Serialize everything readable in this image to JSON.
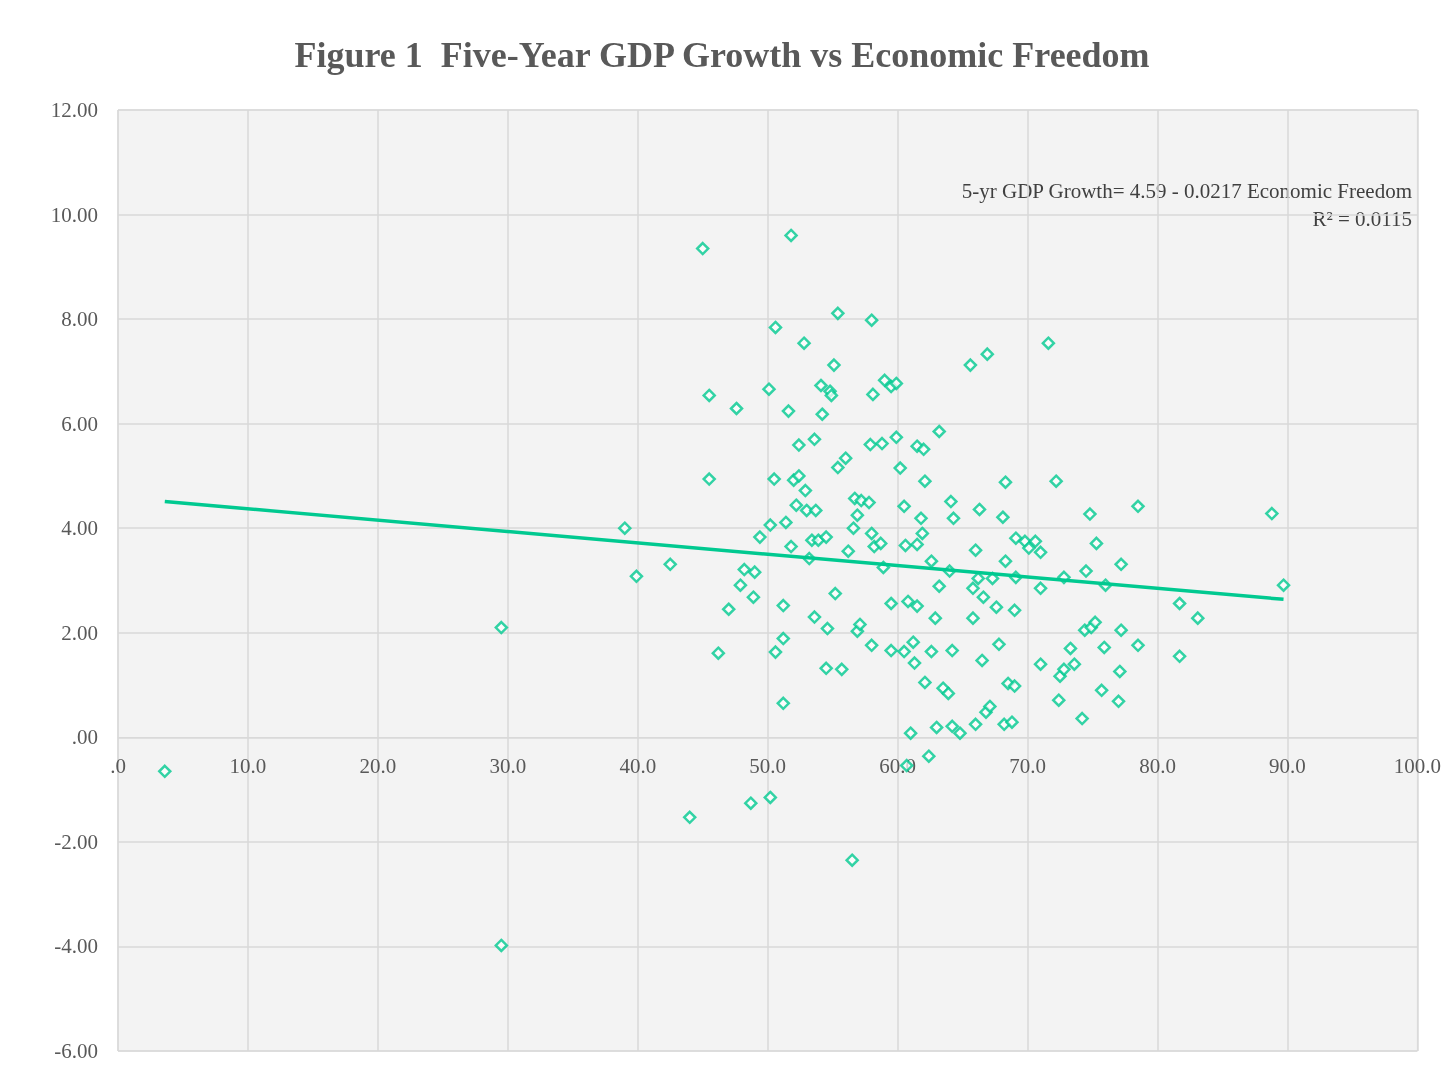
{
  "chart_data": {
    "type": "scatter",
    "title": "Figure 1  Five-Year GDP Growth vs Economic Freedom",
    "annotations": [
      "5-yr GDP Growth= 4.59 - 0.0217 Economic Freedom",
      "R² = 0.0115"
    ],
    "xlim": [
      0,
      100
    ],
    "xticks": [
      {
        "value": 0,
        "label": ".0"
      },
      {
        "value": 10,
        "label": "10.0"
      },
      {
        "value": 20,
        "label": "20.0"
      },
      {
        "value": 30,
        "label": "30.0"
      },
      {
        "value": 40,
        "label": "40.0"
      },
      {
        "value": 50,
        "label": "50.0"
      },
      {
        "value": 60,
        "label": "60.0"
      },
      {
        "value": 70,
        "label": "70.0"
      },
      {
        "value": 80,
        "label": "80.0"
      },
      {
        "value": 90,
        "label": "90.0"
      },
      {
        "value": 100,
        "label": "100.0"
      }
    ],
    "ylim": [
      -6,
      12
    ],
    "yticks": [
      {
        "value": -6,
        "label": "-6.00"
      },
      {
        "value": -4,
        "label": "-4.00"
      },
      {
        "value": -2,
        "label": "-2.00"
      },
      {
        "value": 0,
        "label": ".00"
      },
      {
        "value": 2,
        "label": "2.00"
      },
      {
        "value": 4,
        "label": "4.00"
      },
      {
        "value": 6,
        "label": "6.00"
      },
      {
        "value": 8,
        "label": "8.00"
      },
      {
        "value": 10,
        "label": "10.00"
      },
      {
        "value": 12,
        "label": "12.00"
      }
    ],
    "grid": true,
    "series": [
      {
        "color": "#00c990",
        "marker": "diamond",
        "x": [
          3.6,
          29.5,
          29.5,
          39.0,
          39.9,
          42.5,
          44.0,
          45.0,
          45.5,
          45.5,
          46.2,
          47.0,
          47.6,
          47.9,
          48.2,
          49.0,
          48.9,
          48.7,
          49.4,
          50.1,
          50.2,
          50.5,
          50.6,
          50.2,
          50.6,
          51.2,
          51.2,
          51.2,
          51.4,
          51.6,
          51.8,
          51.8,
          52.0,
          52.2,
          52.4,
          52.4,
          52.9,
          52.8,
          53.0,
          53.2,
          53.4,
          53.6,
          53.7,
          53.6,
          53.9,
          54.1,
          54.2,
          54.5,
          54.5,
          54.6,
          54.8,
          54.9,
          55.1,
          55.2,
          55.4,
          55.4,
          55.7,
          56.0,
          56.2,
          56.5,
          56.6,
          56.7,
          56.9,
          57.1,
          56.9,
          57.2,
          57.8,
          58.0,
          58.1,
          57.9,
          58.0,
          58.2,
          58.0,
          58.7,
          58.8,
          58.9,
          59.0,
          59.5,
          59.5,
          59.5,
          59.9,
          59.9,
          60.2,
          60.5,
          60.5,
          60.6,
          60.7,
          60.8,
          61.0,
          61.2,
          61.3,
          61.5,
          61.5,
          61.5,
          61.8,
          61.9,
          62.0,
          62.1,
          62.1,
          62.4,
          62.6,
          62.6,
          62.9,
          63.0,
          63.2,
          63.2,
          63.5,
          63.9,
          64.0,
          64.1,
          64.2,
          64.2,
          64.3,
          64.8,
          65.6,
          65.8,
          65.8,
          66.0,
          66.0,
          66.2,
          66.3,
          66.5,
          66.6,
          66.9,
          66.8,
          67.1,
          67.3,
          67.6,
          67.8,
          68.1,
          68.2,
          68.3,
          68.3,
          68.5,
          68.8,
          69.0,
          69.1,
          69.1,
          69.0,
          69.8,
          70.1,
          70.6,
          71.0,
          71.0,
          71.0,
          71.6,
          72.2,
          72.4,
          72.5,
          72.8,
          72.8,
          73.3,
          73.6,
          74.2,
          74.4,
          74.5,
          74.8,
          74.9,
          75.2,
          75.3,
          75.7,
          75.9,
          76.0,
          77.0,
          77.1,
          77.2,
          77.2,
          78.5,
          78.5,
          81.7,
          81.7,
          83.1,
          88.8,
          89.7
        ],
        "values": [
          -0.65,
          2.1,
          -3.98,
          4.0,
          3.08,
          3.31,
          -1.53,
          9.35,
          6.54,
          4.94,
          1.61,
          2.45,
          6.29,
          2.91,
          3.21,
          3.16,
          2.68,
          -1.26,
          3.83,
          6.66,
          -1.15,
          4.94,
          7.84,
          4.06,
          1.63,
          1.89,
          2.52,
          0.65,
          4.11,
          6.24,
          9.6,
          3.65,
          4.92,
          4.44,
          5.59,
          5.0,
          4.72,
          7.54,
          4.34,
          3.42,
          3.77,
          5.7,
          4.34,
          2.3,
          3.77,
          6.73,
          6.18,
          3.83,
          1.32,
          2.08,
          6.62,
          6.54,
          7.12,
          2.75,
          8.11,
          5.16,
          1.3,
          5.34,
          3.56,
          -2.35,
          4.0,
          4.57,
          2.03,
          2.16,
          4.25,
          4.53,
          4.49,
          7.98,
          6.56,
          5.6,
          3.9,
          3.65,
          1.76,
          3.71,
          5.62,
          3.25,
          6.83,
          6.71,
          2.56,
          1.66,
          6.77,
          5.74,
          5.15,
          1.64,
          4.42,
          3.67,
          -0.54,
          2.6,
          0.08,
          1.82,
          1.42,
          5.57,
          2.51,
          3.69,
          4.19,
          3.9,
          5.51,
          1.05,
          4.9,
          -0.36,
          1.64,
          3.37,
          2.28,
          0.19,
          5.85,
          2.89,
          0.94,
          0.84,
          3.18,
          4.51,
          1.66,
          0.21,
          4.19,
          0.08,
          7.12,
          2.28,
          2.85,
          3.58,
          0.25,
          3.04,
          4.36,
          1.47,
          2.68,
          7.33,
          0.48,
          0.59,
          3.04,
          2.49,
          1.78,
          4.21,
          0.25,
          4.88,
          3.37,
          1.03,
          0.29,
          2.43,
          3.81,
          3.06,
          0.98,
          3.75,
          3.62,
          3.75,
          3.54,
          1.4,
          2.85,
          7.54,
          4.9,
          0.71,
          1.17,
          1.3,
          3.06,
          1.7,
          1.4,
          0.36,
          2.05,
          3.18,
          4.27,
          2.1,
          2.2,
          3.71,
          0.9,
          1.72,
          2.91,
          0.69,
          1.26,
          3.31,
          2.05,
          1.76,
          4.42,
          2.56,
          1.55,
          2.28,
          4.28,
          2.91
        ]
      },
      {
        "type": "line",
        "color": "#00c990",
        "marker": "none",
        "line_style": "solid",
        "x": [
          3.6,
          89.7
        ],
        "values": [
          4.51,
          2.64
        ]
      }
    ]
  }
}
